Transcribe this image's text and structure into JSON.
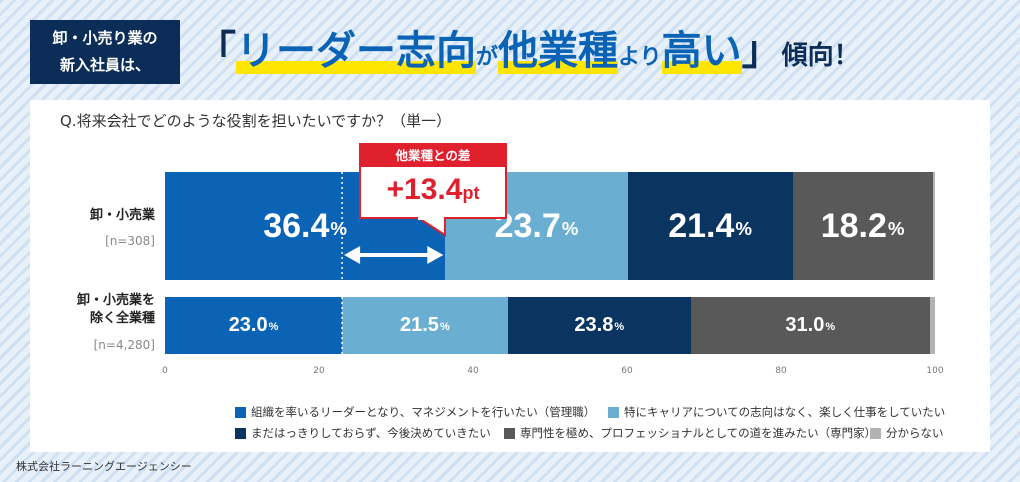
{
  "header": {
    "box_line1": "卸・小売り業の",
    "box_line2": "新入社員は、",
    "headline_open": "「",
    "headline_part1": "リーダー志向",
    "headline_small1": "が",
    "headline_part2": "他業種",
    "headline_small2": "より",
    "headline_part3": "高い",
    "headline_close": "」",
    "headline_tail": "傾向！"
  },
  "question": "Q.将来会社でどのような役割を担いたいですか？（単一）",
  "callout": {
    "title": "他業種との差",
    "value": "+13.4",
    "unit": "pt"
  },
  "footer": "株式会社ラーニングエージェンシー",
  "colors": {
    "leader": "#0b63b6",
    "specialist_free": "#6aafd1",
    "undecided": "#0b3561",
    "expert": "#595959",
    "unknown": "#b3b3b3",
    "accent_red": "#e0202d",
    "headline_yellow": "#ffe600"
  },
  "chart_data": {
    "type": "bar",
    "stacked": true,
    "orientation": "horizontal",
    "xlim": [
      0,
      100
    ],
    "x_ticks": [
      "0",
      "20",
      "40",
      "60",
      "80",
      "100"
    ],
    "categories": [
      {
        "label_lines": [
          "卸・小売業"
        ],
        "n": "[n=308]"
      },
      {
        "label_lines": [
          "卸・小売業を",
          "除く全業種"
        ],
        "n": "[n=4,280]"
      }
    ],
    "series": [
      {
        "name": "組織を率いるリーダーとなり、マネジメントを行いたい（管理職）",
        "values": [
          36.4,
          23.0
        ],
        "labels": [
          "36.4",
          "23.0"
        ],
        "color": "#0b63b6"
      },
      {
        "name": "特にキャリアについての志向はなく、楽しく仕事をしていたい",
        "values": [
          23.7,
          21.5
        ],
        "labels": [
          "23.7",
          "21.5"
        ],
        "color": "#6aafd1"
      },
      {
        "name": "まだはっきりしておらず、今後決めていきたい",
        "values": [
          21.4,
          23.8
        ],
        "labels": [
          "21.4",
          "23.8"
        ],
        "color": "#0b3561"
      },
      {
        "name": "専門性を極め、プロフェッショナルとしての道を進みたい（専門家）",
        "values": [
          18.2,
          31.0
        ],
        "labels": [
          "18.2",
          "31.0"
        ],
        "color": "#595959"
      },
      {
        "name": "分からない",
        "values": [
          0.3,
          0.7
        ],
        "labels": [
          "",
          ""
        ],
        "color": "#b3b3b3"
      }
    ],
    "value_unit": "%",
    "annotation": {
      "text": "他業種との差 +13.4pt",
      "from": 23.0,
      "to": 36.4
    }
  }
}
